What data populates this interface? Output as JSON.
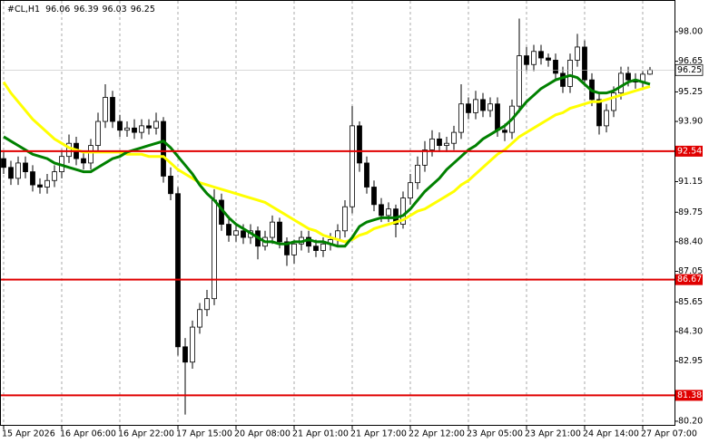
{
  "chart_data": {
    "type": "candlestick",
    "title": "#CL,H1",
    "categories": [
      "15 Apr 2026",
      null,
      null,
      null,
      null,
      null,
      null,
      null,
      "16 Apr 06:00",
      null,
      null,
      null,
      null,
      null,
      null,
      null,
      "16 Apr 22:00",
      null,
      null,
      null,
      null,
      null,
      null,
      null,
      "17 Apr 15:00",
      null,
      null,
      null,
      null,
      null,
      null,
      null,
      "20 Apr 08:00",
      null,
      null,
      null,
      null,
      null,
      null,
      null,
      "21 Apr 01:00",
      null,
      null,
      null,
      null,
      null,
      null,
      null,
      "21 Apr 17:00",
      null,
      null,
      null,
      null,
      null,
      null,
      null,
      "22 Apr 12:00",
      null,
      null,
      null,
      null,
      null,
      null,
      null,
      "23 Apr 05:00",
      null,
      null,
      null,
      null,
      null,
      null,
      null,
      "23 Apr 21:00",
      null,
      null,
      null,
      null,
      null,
      null,
      null,
      "24 Apr 14:00",
      null,
      null,
      null,
      null,
      null,
      null,
      null,
      "27 Apr 07:00",
      null
    ],
    "open": [
      92.2,
      91.8,
      91.3,
      92.0,
      91.6,
      91.0,
      90.9,
      91.2,
      91.6,
      92.3,
      92.9,
      92.2,
      92.0,
      92.8,
      93.9,
      95.0,
      93.9,
      93.5,
      93.6,
      93.4,
      93.7,
      93.6,
      93.9,
      91.4,
      90.6,
      83.6,
      82.9,
      84.5,
      85.3,
      85.8,
      90.3,
      89.2,
      88.7,
      88.9,
      88.6,
      88.9,
      88.2,
      88.6,
      89.3,
      88.4,
      87.8,
      88.3,
      88.6,
      88.2,
      88.0,
      88.3,
      88.5,
      88.9,
      90.0,
      93.7,
      92.0,
      90.9,
      90.1,
      89.6,
      89.9,
      89.2,
      90.4,
      91.1,
      91.9,
      92.6,
      93.1,
      92.8,
      92.9,
      93.4,
      94.7,
      94.3,
      94.9,
      94.4,
      94.7,
      93.5,
      93.4,
      94.6,
      96.9,
      96.5,
      97.1,
      96.8,
      96.7,
      96.1,
      95.5,
      96.7,
      97.3,
      95.8,
      94.9,
      93.7,
      94.4,
      95.2,
      96.1,
      95.8,
      95.7,
      96.06
    ],
    "high": [
      92.5,
      92.1,
      92.3,
      92.3,
      91.9,
      91.3,
      91.5,
      91.9,
      92.6,
      93.3,
      93.2,
      92.5,
      93.1,
      94.3,
      95.6,
      95.3,
      94.2,
      93.9,
      94.0,
      94.0,
      94.0,
      94.3,
      94.1,
      91.8,
      90.9,
      84.0,
      84.8,
      85.6,
      86.2,
      90.8,
      90.6,
      89.6,
      89.2,
      89.2,
      89.2,
      89.1,
      88.9,
      89.6,
      89.5,
      88.6,
      88.5,
      88.9,
      88.9,
      88.5,
      88.6,
      88.8,
      89.2,
      90.3,
      94.6,
      93.9,
      92.3,
      91.2,
      90.4,
      90.2,
      90.1,
      90.7,
      91.5,
      92.3,
      93.0,
      93.5,
      93.4,
      93.2,
      93.7,
      95.6,
      95.0,
      95.3,
      95.2,
      95.0,
      95.0,
      93.8,
      94.9,
      98.6,
      97.3,
      97.4,
      97.4,
      97.0,
      97.0,
      96.4,
      97.0,
      97.9,
      97.6,
      96.1,
      95.2,
      94.7,
      95.5,
      96.4,
      96.4,
      96.1,
      96.2,
      96.39
    ],
    "low": [
      91.5,
      91.0,
      91.0,
      91.3,
      90.7,
      90.6,
      90.6,
      90.9,
      91.3,
      92.0,
      91.9,
      91.7,
      91.7,
      92.5,
      93.6,
      93.6,
      93.2,
      93.2,
      93.1,
      93.1,
      93.3,
      93.3,
      91.1,
      90.3,
      83.2,
      80.5,
      82.6,
      84.2,
      85.0,
      85.5,
      88.9,
      88.4,
      88.4,
      88.3,
      88.3,
      87.6,
      88.0,
      88.3,
      88.1,
      87.3,
      87.4,
      88.0,
      87.9,
      87.7,
      87.7,
      88.0,
      88.2,
      88.6,
      89.7,
      91.6,
      90.6,
      89.8,
      89.3,
      89.3,
      88.6,
      89.0,
      90.1,
      90.8,
      91.6,
      92.3,
      92.5,
      92.5,
      92.6,
      93.1,
      94.0,
      94.0,
      94.1,
      94.1,
      93.2,
      93.0,
      93.1,
      94.3,
      96.2,
      96.2,
      96.5,
      96.4,
      95.8,
      95.2,
      95.2,
      96.4,
      95.5,
      94.6,
      93.3,
      93.4,
      94.1,
      94.9,
      95.5,
      95.4,
      95.4,
      96.03
    ],
    "close": [
      91.8,
      91.3,
      92.0,
      91.6,
      91.0,
      90.9,
      91.2,
      91.6,
      92.3,
      92.9,
      92.2,
      92.0,
      92.8,
      93.9,
      95.0,
      93.9,
      93.5,
      93.6,
      93.4,
      93.7,
      93.6,
      93.9,
      91.4,
      90.6,
      83.6,
      82.9,
      84.5,
      85.3,
      85.8,
      90.3,
      89.2,
      88.7,
      88.9,
      88.6,
      88.9,
      88.2,
      88.6,
      89.3,
      88.4,
      87.8,
      88.3,
      88.6,
      88.2,
      88.0,
      88.3,
      88.5,
      88.9,
      90.0,
      93.7,
      92.0,
      90.9,
      90.1,
      89.6,
      89.9,
      89.2,
      90.4,
      91.1,
      91.9,
      92.6,
      93.1,
      92.8,
      92.9,
      93.4,
      94.7,
      94.3,
      94.9,
      94.4,
      94.7,
      93.5,
      93.4,
      94.6,
      96.9,
      96.5,
      97.1,
      96.8,
      96.7,
      96.1,
      95.5,
      96.7,
      97.3,
      95.8,
      94.9,
      93.7,
      94.4,
      95.2,
      96.1,
      95.8,
      95.7,
      96.06,
      96.25
    ],
    "up_color": "#ffffff",
    "down_color": "#000000",
    "candle_outline": "#000000",
    "overlays": [
      {
        "color": "#ffff00",
        "values": [
          95.7,
          95.2,
          94.8,
          94.4,
          94.0,
          93.7,
          93.4,
          93.1,
          92.9,
          92.7,
          92.6,
          92.5,
          92.5,
          92.5,
          92.5,
          92.5,
          92.5,
          92.4,
          92.4,
          92.4,
          92.3,
          92.3,
          92.3,
          92.0,
          91.7,
          91.5,
          91.3,
          91.1,
          91.0,
          90.9,
          90.8,
          90.7,
          90.6,
          90.5,
          90.4,
          90.3,
          90.2,
          90.0,
          89.8,
          89.6,
          89.4,
          89.2,
          89.0,
          88.9,
          88.7,
          88.6,
          88.5,
          88.4,
          88.5,
          88.7,
          88.8,
          89.0,
          89.1,
          89.2,
          89.3,
          89.4,
          89.6,
          89.8,
          89.9,
          90.1,
          90.3,
          90.5,
          90.7,
          91.0,
          91.2,
          91.5,
          91.8,
          92.1,
          92.4,
          92.6,
          92.9,
          93.2,
          93.4,
          93.6,
          93.8,
          94.0,
          94.2,
          94.3,
          94.5,
          94.6,
          94.7,
          94.8,
          94.8,
          94.9,
          95.0,
          95.1,
          95.2,
          95.3,
          95.4,
          95.5
        ]
      },
      {
        "color": "#008000",
        "values": [
          93.2,
          93.0,
          92.8,
          92.6,
          92.4,
          92.3,
          92.2,
          92.0,
          91.9,
          91.8,
          91.7,
          91.6,
          91.6,
          91.8,
          92.0,
          92.2,
          92.3,
          92.5,
          92.6,
          92.7,
          92.8,
          92.9,
          93.0,
          92.7,
          92.3,
          91.9,
          91.5,
          91.0,
          90.6,
          90.3,
          89.9,
          89.5,
          89.2,
          89.0,
          88.8,
          88.6,
          88.4,
          88.4,
          88.3,
          88.3,
          88.4,
          88.4,
          88.5,
          88.4,
          88.4,
          88.3,
          88.2,
          88.2,
          88.6,
          89.1,
          89.3,
          89.4,
          89.5,
          89.5,
          89.5,
          89.6,
          89.9,
          90.3,
          90.7,
          91.0,
          91.3,
          91.7,
          92.0,
          92.3,
          92.6,
          92.8,
          93.1,
          93.3,
          93.5,
          93.7,
          94.0,
          94.4,
          94.8,
          95.1,
          95.4,
          95.6,
          95.8,
          95.9,
          96.0,
          95.9,
          95.6,
          95.3,
          95.2,
          95.2,
          95.3,
          95.5,
          95.7,
          95.8,
          95.7,
          95.6
        ]
      }
    ],
    "levels": [
      92.54,
      86.67,
      81.38
    ],
    "level_color": "#e00000",
    "ylim": [
      79.99,
      99.45
    ],
    "yticks": [
      {
        "value": 98,
        "label": "98.00"
      },
      96.65,
      95.25,
      {
        "value": 93.9,
        "label": "93.90"
      },
      91.15,
      89.75,
      {
        "value": 88.4,
        "label": "88.40"
      },
      87.05,
      85.65,
      {
        "value": 84.3,
        "label": "84.30"
      },
      82.95,
      {
        "value": 80.2,
        "label": "80.20"
      }
    ],
    "x_grid": true
  }
}
